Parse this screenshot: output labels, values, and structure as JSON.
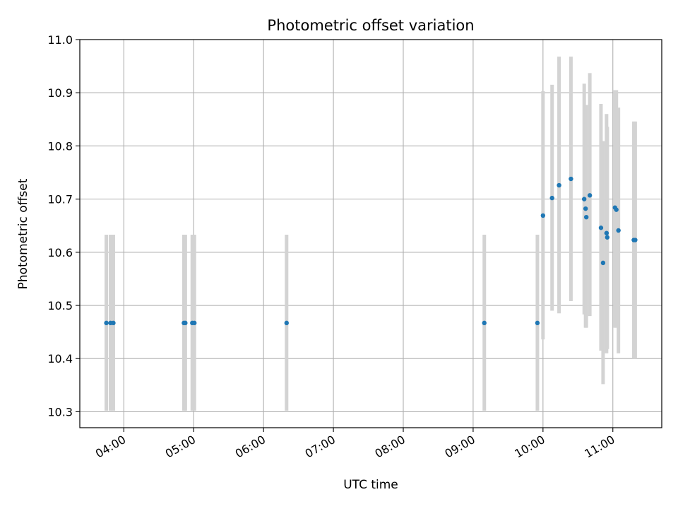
{
  "chart_data": {
    "type": "scatter",
    "title": "Photometric offset variation",
    "xlabel": "UTC time",
    "ylabel": "Photometric offset",
    "x_unit": "hours (UTC time of day)",
    "xlim": [
      3.37,
      11.7
    ],
    "ylim": [
      10.27,
      11.0
    ],
    "xticks": [
      {
        "value": 4,
        "label": "04:00"
      },
      {
        "value": 5,
        "label": "05:00"
      },
      {
        "value": 6,
        "label": "06:00"
      },
      {
        "value": 7,
        "label": "07:00"
      },
      {
        "value": 8,
        "label": "08:00"
      },
      {
        "value": 9,
        "label": "09:00"
      },
      {
        "value": 10,
        "label": "10:00"
      },
      {
        "value": 11,
        "label": "11:00"
      }
    ],
    "yticks": [
      {
        "value": 10.3,
        "label": "10.3"
      },
      {
        "value": 10.4,
        "label": "10.4"
      },
      {
        "value": 10.5,
        "label": "10.5"
      },
      {
        "value": 10.6,
        "label": "10.6"
      },
      {
        "value": 10.7,
        "label": "10.7"
      },
      {
        "value": 10.8,
        "label": "10.8"
      },
      {
        "value": 10.9,
        "label": "10.9"
      },
      {
        "value": 11.0,
        "label": "11.0"
      }
    ],
    "grid": true,
    "legend": "none",
    "marker_color": "#1f77b4",
    "errorbar_color": "#d3d3d3",
    "points": [
      {
        "x": 3.75,
        "y": 10.467,
        "err_low": 10.302,
        "err_high": 10.633
      },
      {
        "x": 3.81,
        "y": 10.467,
        "err_low": 10.302,
        "err_high": 10.633
      },
      {
        "x": 3.85,
        "y": 10.467,
        "err_low": 10.302,
        "err_high": 10.633
      },
      {
        "x": 4.86,
        "y": 10.467,
        "err_low": 10.302,
        "err_high": 10.633
      },
      {
        "x": 4.88,
        "y": 10.467,
        "err_low": 10.302,
        "err_high": 10.633
      },
      {
        "x": 4.98,
        "y": 10.467,
        "err_low": 10.302,
        "err_high": 10.633
      },
      {
        "x": 5.01,
        "y": 10.467,
        "err_low": 10.302,
        "err_high": 10.633
      },
      {
        "x": 6.33,
        "y": 10.467,
        "err_low": 10.302,
        "err_high": 10.633
      },
      {
        "x": 9.16,
        "y": 10.467,
        "err_low": 10.302,
        "err_high": 10.633
      },
      {
        "x": 9.92,
        "y": 10.467,
        "err_low": 10.302,
        "err_high": 10.633
      },
      {
        "x": 10.0,
        "y": 10.669,
        "err_low": 10.436,
        "err_high": 10.903
      },
      {
        "x": 10.13,
        "y": 10.702,
        "err_low": 10.49,
        "err_high": 10.915
      },
      {
        "x": 10.23,
        "y": 10.726,
        "err_low": 10.485,
        "err_high": 10.968
      },
      {
        "x": 10.4,
        "y": 10.738,
        "err_low": 10.508,
        "err_high": 10.968
      },
      {
        "x": 10.59,
        "y": 10.7,
        "err_low": 10.483,
        "err_high": 10.917
      },
      {
        "x": 10.61,
        "y": 10.682,
        "err_low": 10.458,
        "err_high": 10.877
      },
      {
        "x": 10.62,
        "y": 10.666,
        "err_low": 10.458,
        "err_high": 10.877
      },
      {
        "x": 10.67,
        "y": 10.707,
        "err_low": 10.48,
        "err_high": 10.937
      },
      {
        "x": 10.83,
        "y": 10.646,
        "err_low": 10.415,
        "err_high": 10.879
      },
      {
        "x": 10.86,
        "y": 10.58,
        "err_low": 10.352,
        "err_high": 10.809
      },
      {
        "x": 10.91,
        "y": 10.636,
        "err_low": 10.41,
        "err_high": 10.86
      },
      {
        "x": 10.92,
        "y": 10.628,
        "err_low": 10.418,
        "err_high": 10.836
      },
      {
        "x": 11.03,
        "y": 10.684,
        "err_low": 10.458,
        "err_high": 10.905
      },
      {
        "x": 11.05,
        "y": 10.68,
        "err_low": 10.458,
        "err_high": 10.905
      },
      {
        "x": 11.08,
        "y": 10.641,
        "err_low": 10.41,
        "err_high": 10.872
      },
      {
        "x": 11.3,
        "y": 10.623,
        "err_low": 10.4,
        "err_high": 10.846
      },
      {
        "x": 11.32,
        "y": 10.623,
        "err_low": 10.4,
        "err_high": 10.846
      }
    ]
  }
}
